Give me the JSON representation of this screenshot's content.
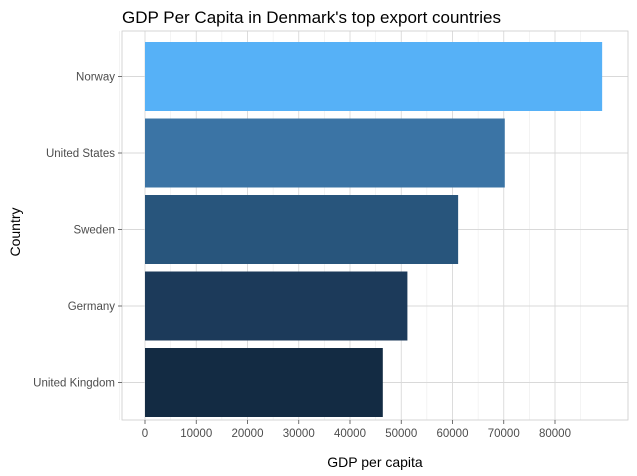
{
  "chart_data": {
    "type": "bar",
    "orientation": "horizontal",
    "title": "GDP Per Capita in Denmark's top export countries",
    "xlabel": "GDP per capita",
    "ylabel": "Country",
    "categories": [
      "Norway",
      "United States",
      "Sweden",
      "Germany",
      "United Kingdom"
    ],
    "values": [
      89200,
      70200,
      61100,
      51200,
      46400
    ],
    "colors": [
      "#56b1f7",
      "#3b74a5",
      "#28557c",
      "#1c3a5a",
      "#132b43"
    ],
    "xlim": [
      0,
      90000
    ],
    "xticks": [
      0,
      10000,
      20000,
      30000,
      40000,
      50000,
      60000,
      70000,
      80000
    ],
    "xtick_labels": [
      "0",
      "10000",
      "20000",
      "30000",
      "40000",
      "50000",
      "60000",
      "70000",
      "80000"
    ],
    "grid": true,
    "legend": "none"
  }
}
